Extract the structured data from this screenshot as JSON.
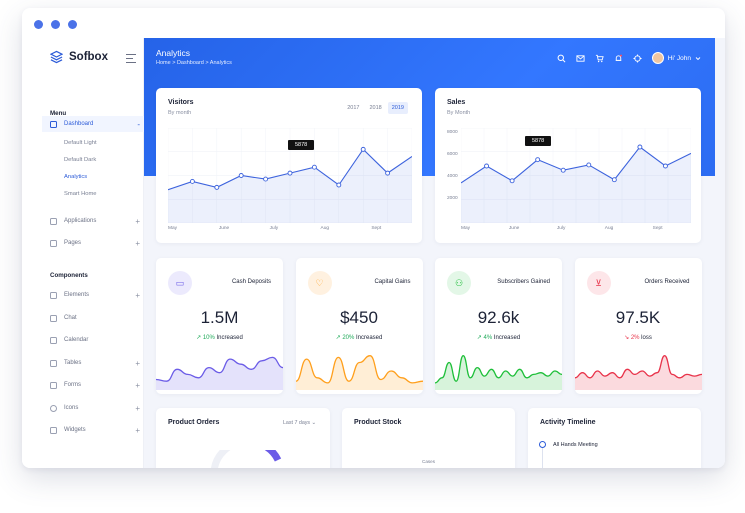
{
  "app": {
    "brand": "Sofbox"
  },
  "header": {
    "title": "Analytics",
    "breadcrumb": "Home > Dashboard > Analytics",
    "user_greeting": "Hi' John"
  },
  "sidebar": {
    "menu_label": "Menu",
    "dashboard_label": "Dashboard",
    "dashboard_toggle": "-",
    "sub_items": [
      "Default Light",
      "Default Dark",
      "Analytics",
      "Smart Home"
    ],
    "items_menu": [
      {
        "label": "Applications",
        "toggle": "+"
      },
      {
        "label": "Pages",
        "toggle": "+"
      }
    ],
    "components_label": "Components",
    "items_components": [
      {
        "label": "Elements",
        "toggle": "+"
      },
      {
        "label": "Chat",
        "toggle": ""
      },
      {
        "label": "Calendar",
        "toggle": ""
      },
      {
        "label": "Tables",
        "toggle": "+"
      },
      {
        "label": "Forms",
        "toggle": "+"
      },
      {
        "label": "Icons",
        "toggle": "+"
      },
      {
        "label": "Widgets",
        "toggle": "+"
      }
    ]
  },
  "visitors": {
    "title": "Visitors",
    "subtitle": "By month",
    "years": [
      "2017",
      "2018",
      "2019"
    ],
    "selected_year": "2019",
    "tooltip": "5878"
  },
  "sales": {
    "title": "Sales",
    "subtitle": "By Month",
    "tooltip": "5878"
  },
  "stats": [
    {
      "label": "Cash Deposits",
      "value": "1.5M",
      "pct": "10%",
      "change_text": "Increased",
      "trend": "up",
      "color": "#6b5ce7",
      "icon": "truck-icon"
    },
    {
      "label": "Capital Gains",
      "value": "$450",
      "pct": "20%",
      "change_text": "Increased",
      "trend": "up",
      "color": "#ff9f1c",
      "icon": "heart-icon"
    },
    {
      "label": "Subscribers Gained",
      "value": "92.6k",
      "pct": "4%",
      "change_text": "Increased",
      "trend": "up",
      "color": "#1fbf3a",
      "icon": "users-icon"
    },
    {
      "label": "Orders Received",
      "value": "97.5K",
      "pct": "2%",
      "change_text": "loss",
      "trend": "down",
      "color": "#e8334a",
      "icon": "cart-icon"
    }
  ],
  "bottom": {
    "orders_title": "Product Orders",
    "orders_filter": "Last 7 days",
    "stock_title": "Product Stock",
    "stock_axis_label": "Cases",
    "timeline_title": "Activity Timeline",
    "timeline_first": "All Hands Meeting"
  },
  "chart_data": [
    {
      "type": "line",
      "x_ticks": [
        "May",
        "June",
        "July",
        "Aug",
        "Sept"
      ],
      "series": [
        {
          "values": [
            2800,
            3500,
            3000,
            4000,
            3700,
            4200,
            4700,
            3200,
            6200,
            4200,
            5600
          ]
        }
      ]
    },
    {
      "type": "line",
      "x_ticks": [
        "May",
        "June",
        "July",
        "Aug",
        "Sept"
      ],
      "y_ticks": [
        "8000",
        "6000",
        "4000",
        "2000"
      ],
      "series": [
        {
          "values": [
            3800,
            5400,
            4000,
            6000,
            5000,
            5500,
            4100,
            7200,
            5400,
            6600
          ]
        }
      ]
    }
  ],
  "colors": {
    "primary": "#2c6cf2",
    "accent_blue": "#2c5bd8"
  }
}
